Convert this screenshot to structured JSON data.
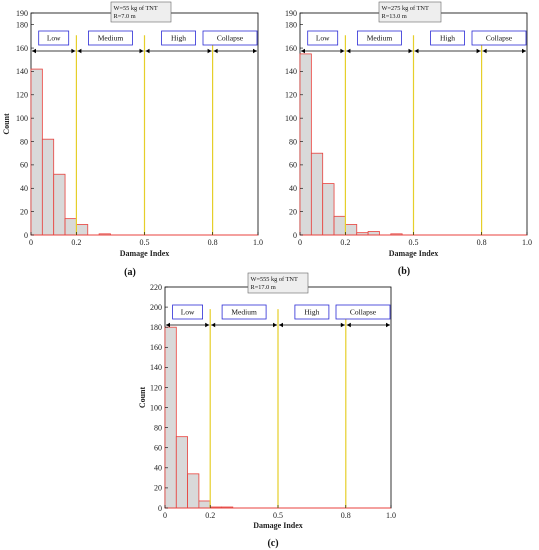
{
  "chart_data": [
    {
      "type": "bar",
      "panel_label": "(a)",
      "annotation": [
        "W=55 kg of TNT",
        "R=7.0 m"
      ],
      "xlabel": "Damage Index",
      "ylabel": "Count",
      "xlim": [
        0,
        1
      ],
      "ylim": [
        0,
        190
      ],
      "xticks": [
        "0",
        "0.2",
        "0.5",
        "0.8",
        "1.0"
      ],
      "yticks": [
        "0",
        "20",
        "40",
        "60",
        "80",
        "100",
        "120",
        "140",
        "160",
        "180",
        "190"
      ],
      "bin_width": 0.05,
      "bins": [
        {
          "start": 0.0,
          "count": 142
        },
        {
          "start": 0.05,
          "count": 82
        },
        {
          "start": 0.1,
          "count": 52
        },
        {
          "start": 0.15,
          "count": 14
        },
        {
          "start": 0.2,
          "count": 9
        },
        {
          "start": 0.3,
          "count": 1
        }
      ],
      "thresholds": [
        0.2,
        0.5,
        0.8
      ],
      "damage_zones": [
        "Low",
        "Medium",
        "High",
        "Collapse"
      ]
    },
    {
      "type": "bar",
      "panel_label": "(b)",
      "annotation": [
        "W=275 kg of TNT",
        "R=13.0 m"
      ],
      "xlabel": "Damage Index",
      "ylabel": "",
      "xlim": [
        0,
        1
      ],
      "ylim": [
        0,
        190
      ],
      "xticks": [
        "0",
        "0.2",
        "0.5",
        "0.8",
        "1.0"
      ],
      "yticks": [
        "0",
        "20",
        "40",
        "60",
        "80",
        "100",
        "120",
        "140",
        "160",
        "180",
        "190"
      ],
      "bin_width": 0.05,
      "bins": [
        {
          "start": 0.0,
          "count": 155
        },
        {
          "start": 0.05,
          "count": 70
        },
        {
          "start": 0.1,
          "count": 44
        },
        {
          "start": 0.15,
          "count": 16
        },
        {
          "start": 0.2,
          "count": 9
        },
        {
          "start": 0.25,
          "count": 2
        },
        {
          "start": 0.3,
          "count": 3
        },
        {
          "start": 0.35,
          "count": 0
        },
        {
          "start": 0.4,
          "count": 1
        }
      ],
      "thresholds": [
        0.2,
        0.5,
        0.8
      ],
      "damage_zones": [
        "Low",
        "Medium",
        "High",
        "Collapse"
      ]
    },
    {
      "type": "bar",
      "panel_label": "(c)",
      "annotation": [
        "W=555 kg of TNT",
        "R=17.0 m"
      ],
      "xlabel": "Damage Index",
      "ylabel": "Count",
      "xlim": [
        0,
        1
      ],
      "ylim": [
        0,
        220
      ],
      "xticks": [
        "0",
        "0.2",
        "0.5",
        "0.8",
        "1.0"
      ],
      "yticks": [
        "0",
        "20",
        "40",
        "60",
        "80",
        "100",
        "120",
        "140",
        "160",
        "180",
        "200",
        "220"
      ],
      "bin_width": 0.05,
      "bins": [
        {
          "start": 0.0,
          "count": 180
        },
        {
          "start": 0.05,
          "count": 71
        },
        {
          "start": 0.1,
          "count": 34
        },
        {
          "start": 0.15,
          "count": 7
        },
        {
          "start": 0.2,
          "count": 1
        },
        {
          "start": 0.25,
          "count": 1
        }
      ],
      "thresholds": [
        0.2,
        0.5,
        0.8
      ],
      "damage_zones": [
        "Low",
        "Medium",
        "High",
        "Collapse"
      ]
    }
  ],
  "colors": {
    "bar_fill": "#d9d9d9",
    "bar_edge": "#e8413c",
    "threshold_line": "#e6cf2a",
    "zone_box": "#2b2bd6",
    "axis": "#000000"
  }
}
